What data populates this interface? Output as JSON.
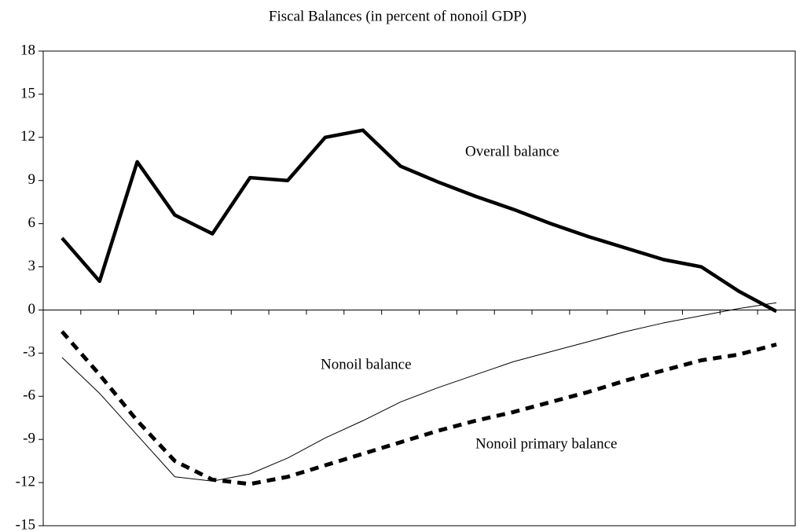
{
  "chart_data": {
    "type": "line",
    "title": "Fiscal Balances (in percent of nonoil GDP)",
    "categories": [
      null,
      null,
      null,
      null,
      null,
      null,
      null,
      null,
      null,
      null,
      null,
      null,
      null,
      null,
      null,
      null,
      null,
      null,
      null,
      null
    ],
    "series": [
      {
        "name": "Overall balance",
        "color": "#000000",
        "values": [
          5.0,
          2.0,
          10.3,
          6.6,
          5.3,
          9.2,
          9.0,
          12.0,
          12.5,
          10.0,
          8.9,
          7.9,
          7.0,
          6.0,
          5.1,
          4.3,
          3.5,
          3.0,
          1.3,
          -0.1
        ]
      },
      {
        "name": "Nonoil balance",
        "color": "#000000",
        "values": [
          -3.3,
          -5.8,
          -8.7,
          -11.6,
          -11.9,
          -11.4,
          -10.3,
          -8.9,
          -7.7,
          -6.4,
          -5.4,
          -4.5,
          -3.6,
          -2.9,
          -2.2,
          -1.5,
          -0.9,
          -0.4,
          0.1,
          0.5
        ]
      },
      {
        "name": "Nonoil primary balance",
        "color": "#000000",
        "values": [
          -1.5,
          -4.5,
          -7.7,
          -10.5,
          -11.8,
          -12.1,
          -11.6,
          -10.8,
          -10.0,
          -9.2,
          -8.4,
          -7.7,
          -7.1,
          -6.4,
          -5.7,
          -4.9,
          -4.2,
          -3.5,
          -3.1,
          -2.4
        ]
      }
    ],
    "ylim": [
      -15,
      18
    ],
    "yticks": [
      -15,
      -12,
      -9,
      -6,
      -3,
      0,
      3,
      6,
      9,
      12,
      15,
      18
    ],
    "grid": false
  }
}
